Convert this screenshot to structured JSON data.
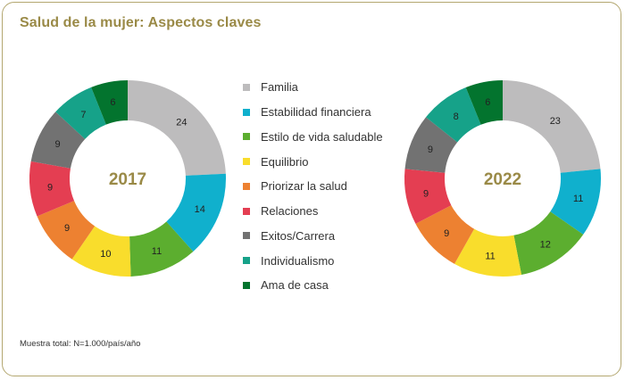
{
  "title": "Salud de la mujer: Aspectos claves",
  "note": "Muestra total: N=1.000/país/año",
  "colors": {
    "title": "#9a8a47",
    "border": "#b3a770",
    "center_label": "#9a8a47"
  },
  "chart_data": [
    {
      "type": "pie",
      "variant": "donut",
      "center_label": "2017",
      "categories": [
        "Familia",
        "Estabilidad financiera",
        "Estilo de vida saludable",
        "Equilibrio",
        "Priorizar la salud",
        "Relaciones",
        "Exitos/Carrera",
        "Individualismo",
        "Ama de casa"
      ],
      "values": [
        24,
        14,
        11,
        10,
        9,
        9,
        9,
        7,
        6
      ],
      "colors": [
        "#bdbcbd",
        "#10b0cd",
        "#5cae2f",
        "#f9dd2c",
        "#ed8131",
        "#e43e52",
        "#727272",
        "#16a289",
        "#03742e"
      ]
    },
    {
      "type": "pie",
      "variant": "donut",
      "center_label": "2022",
      "categories": [
        "Familia",
        "Estabilidad financiera",
        "Estilo de vida saludable",
        "Equilibrio",
        "Priorizar la salud",
        "Relaciones",
        "Exitos/Carrera",
        "Individualismo",
        "Ama de casa"
      ],
      "values": [
        23,
        11,
        12,
        11,
        9,
        9,
        9,
        8,
        6
      ],
      "colors": [
        "#bdbcbd",
        "#10b0cd",
        "#5cae2f",
        "#f9dd2c",
        "#ed8131",
        "#e43e52",
        "#727272",
        "#16a289",
        "#03742e"
      ]
    }
  ],
  "legend": [
    {
      "label": "Familia",
      "color": "#bdbcbd"
    },
    {
      "label": "Estabilidad financiera",
      "color": "#10b0cd"
    },
    {
      "label": "Estilo de vida saludable",
      "color": "#5cae2f"
    },
    {
      "label": "Equilibrio",
      "color": "#f9dd2c"
    },
    {
      "label": "Priorizar la salud",
      "color": "#ed8131"
    },
    {
      "label": "Relaciones",
      "color": "#e43e52"
    },
    {
      "label": "Exitos/Carrera",
      "color": "#727272"
    },
    {
      "label": "Individualismo",
      "color": "#16a289"
    },
    {
      "label": "Ama de casa",
      "color": "#03742e"
    }
  ]
}
